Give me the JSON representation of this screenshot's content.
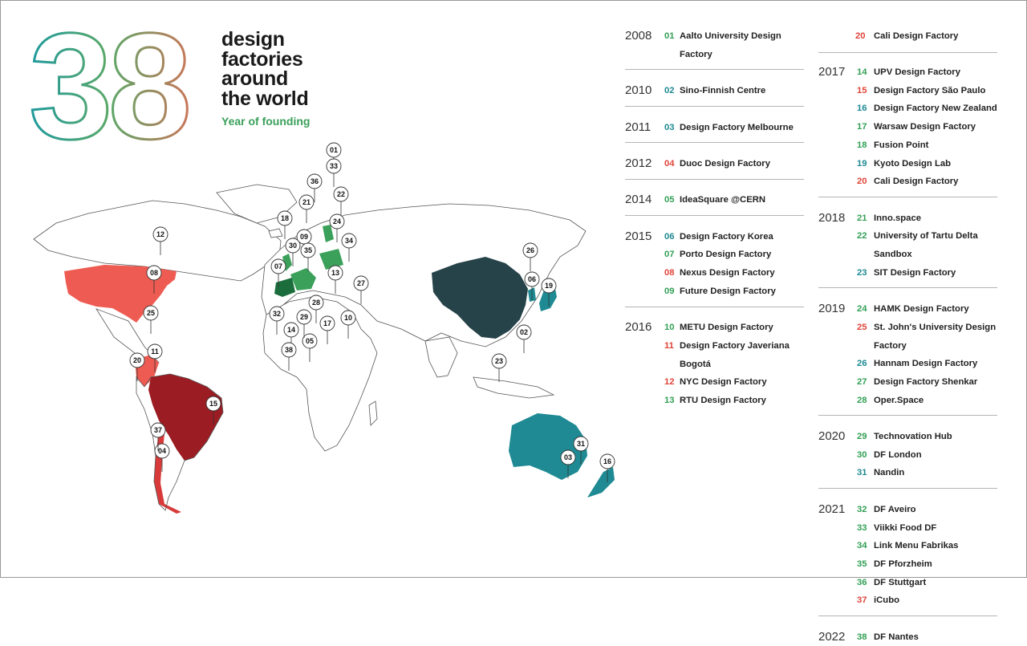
{
  "header": {
    "big_number": "38",
    "title_lines": [
      "design",
      "factories",
      "around",
      "the world"
    ],
    "subtitle": "Year of founding"
  },
  "colors": {
    "green": "#33a057",
    "red": "#e0453a",
    "teal": "#1f8a93",
    "dark_red": "#9b1c22",
    "dark_teal": "#27434a",
    "salmon": "#ee5b52"
  },
  "map_pins": [
    "01",
    "02",
    "03",
    "04",
    "05",
    "06",
    "07",
    "08",
    "09",
    "10",
    "11",
    "12",
    "13",
    "14",
    "15",
    "16",
    "17",
    "18",
    "19",
    "20",
    "21",
    "22",
    "23",
    "24",
    "25",
    "26",
    "27",
    "28",
    "29",
    "30",
    "31",
    "32",
    "33",
    "34",
    "35",
    "36",
    "37",
    "38"
  ],
  "years": [
    {
      "year": "2008",
      "items": [
        {
          "num": "01",
          "name": "Aalto University Design Factory",
          "color": "green"
        }
      ]
    },
    {
      "year": "2010",
      "items": [
        {
          "num": "02",
          "name": "Sino-Finnish Centre",
          "color": "teal"
        }
      ]
    },
    {
      "year": "2011",
      "items": [
        {
          "num": "03",
          "name": "Design Factory Melbourne",
          "color": "teal"
        }
      ]
    },
    {
      "year": "2012",
      "items": [
        {
          "num": "04",
          "name": "Duoc Design Factory",
          "color": "red"
        }
      ]
    },
    {
      "year": "2014",
      "items": [
        {
          "num": "05",
          "name": "IdeaSquare @CERN",
          "color": "green"
        }
      ]
    },
    {
      "year": "2015",
      "items": [
        {
          "num": "06",
          "name": "Design Factory Korea",
          "color": "teal"
        },
        {
          "num": "07",
          "name": "Porto Design Factory",
          "color": "green"
        },
        {
          "num": "08",
          "name": "Nexus Design Factory",
          "color": "red"
        },
        {
          "num": "09",
          "name": "Future Design Factory",
          "color": "green"
        }
      ]
    },
    {
      "year": "2016",
      "items": [
        {
          "num": "10",
          "name": "METU Design Factory",
          "color": "green"
        },
        {
          "num": "11",
          "name": "Design Factory Javeriana Bogotá",
          "color": "red"
        },
        {
          "num": "12",
          "name": "NYC Design Factory",
          "color": "red"
        },
        {
          "num": "13",
          "name": "RTU Design Factory",
          "color": "green"
        }
      ]
    },
    {
      "year": "2017",
      "items": [
        {
          "num": "14",
          "name": "UPV Design Factory",
          "color": "green"
        },
        {
          "num": "15",
          "name": "Design Factory São Paulo",
          "color": "red"
        },
        {
          "num": "16",
          "name": "Design Factory New Zealand",
          "color": "teal"
        },
        {
          "num": "17",
          "name": "Warsaw Design Factory",
          "color": "green"
        },
        {
          "num": "18",
          "name": "Fusion Point",
          "color": "green"
        },
        {
          "num": "19",
          "name": "Kyoto Design Lab",
          "color": "teal"
        },
        {
          "num": "20",
          "name": "Cali Design Factory",
          "color": "red"
        }
      ]
    },
    {
      "year": "2018",
      "items": [
        {
          "num": "21",
          "name": "Inno.space",
          "color": "green"
        },
        {
          "num": "22",
          "name": "University of Tartu Delta Sandbox",
          "color": "green"
        },
        {
          "num": "23",
          "name": "SIT Design Factory",
          "color": "teal"
        }
      ]
    },
    {
      "year": "2019",
      "items": [
        {
          "num": "24",
          "name": "HAMK Design Factory",
          "color": "green"
        },
        {
          "num": "25",
          "name": "St. John's University Design Factory",
          "color": "red"
        },
        {
          "num": "26",
          "name": "Hannam Design Factory",
          "color": "teal"
        },
        {
          "num": "27",
          "name": "Design Factory Shenkar",
          "color": "green"
        },
        {
          "num": "28",
          "name": "Oper.Space",
          "color": "green"
        }
      ]
    },
    {
      "year": "2020",
      "items": [
        {
          "num": "29",
          "name": "Technovation Hub",
          "color": "green"
        },
        {
          "num": "30",
          "name": "DF London",
          "color": "green"
        },
        {
          "num": "31",
          "name": "Nandin",
          "color": "teal"
        }
      ]
    },
    {
      "year": "2021",
      "items": [
        {
          "num": "32",
          "name": "DF Aveiro",
          "color": "green"
        },
        {
          "num": "33",
          "name": "Viikki Food DF",
          "color": "green"
        },
        {
          "num": "34",
          "name": "Link Menu Fabrikas",
          "color": "green"
        },
        {
          "num": "35",
          "name": "DF Pforzheim",
          "color": "green"
        },
        {
          "num": "36",
          "name": "DF Stuttgart",
          "color": "green"
        },
        {
          "num": "37",
          "name": "iCubo",
          "color": "red"
        }
      ]
    },
    {
      "year": "2022",
      "items": [
        {
          "num": "38",
          "name": "DF Nantes",
          "color": "green"
        }
      ]
    }
  ]
}
